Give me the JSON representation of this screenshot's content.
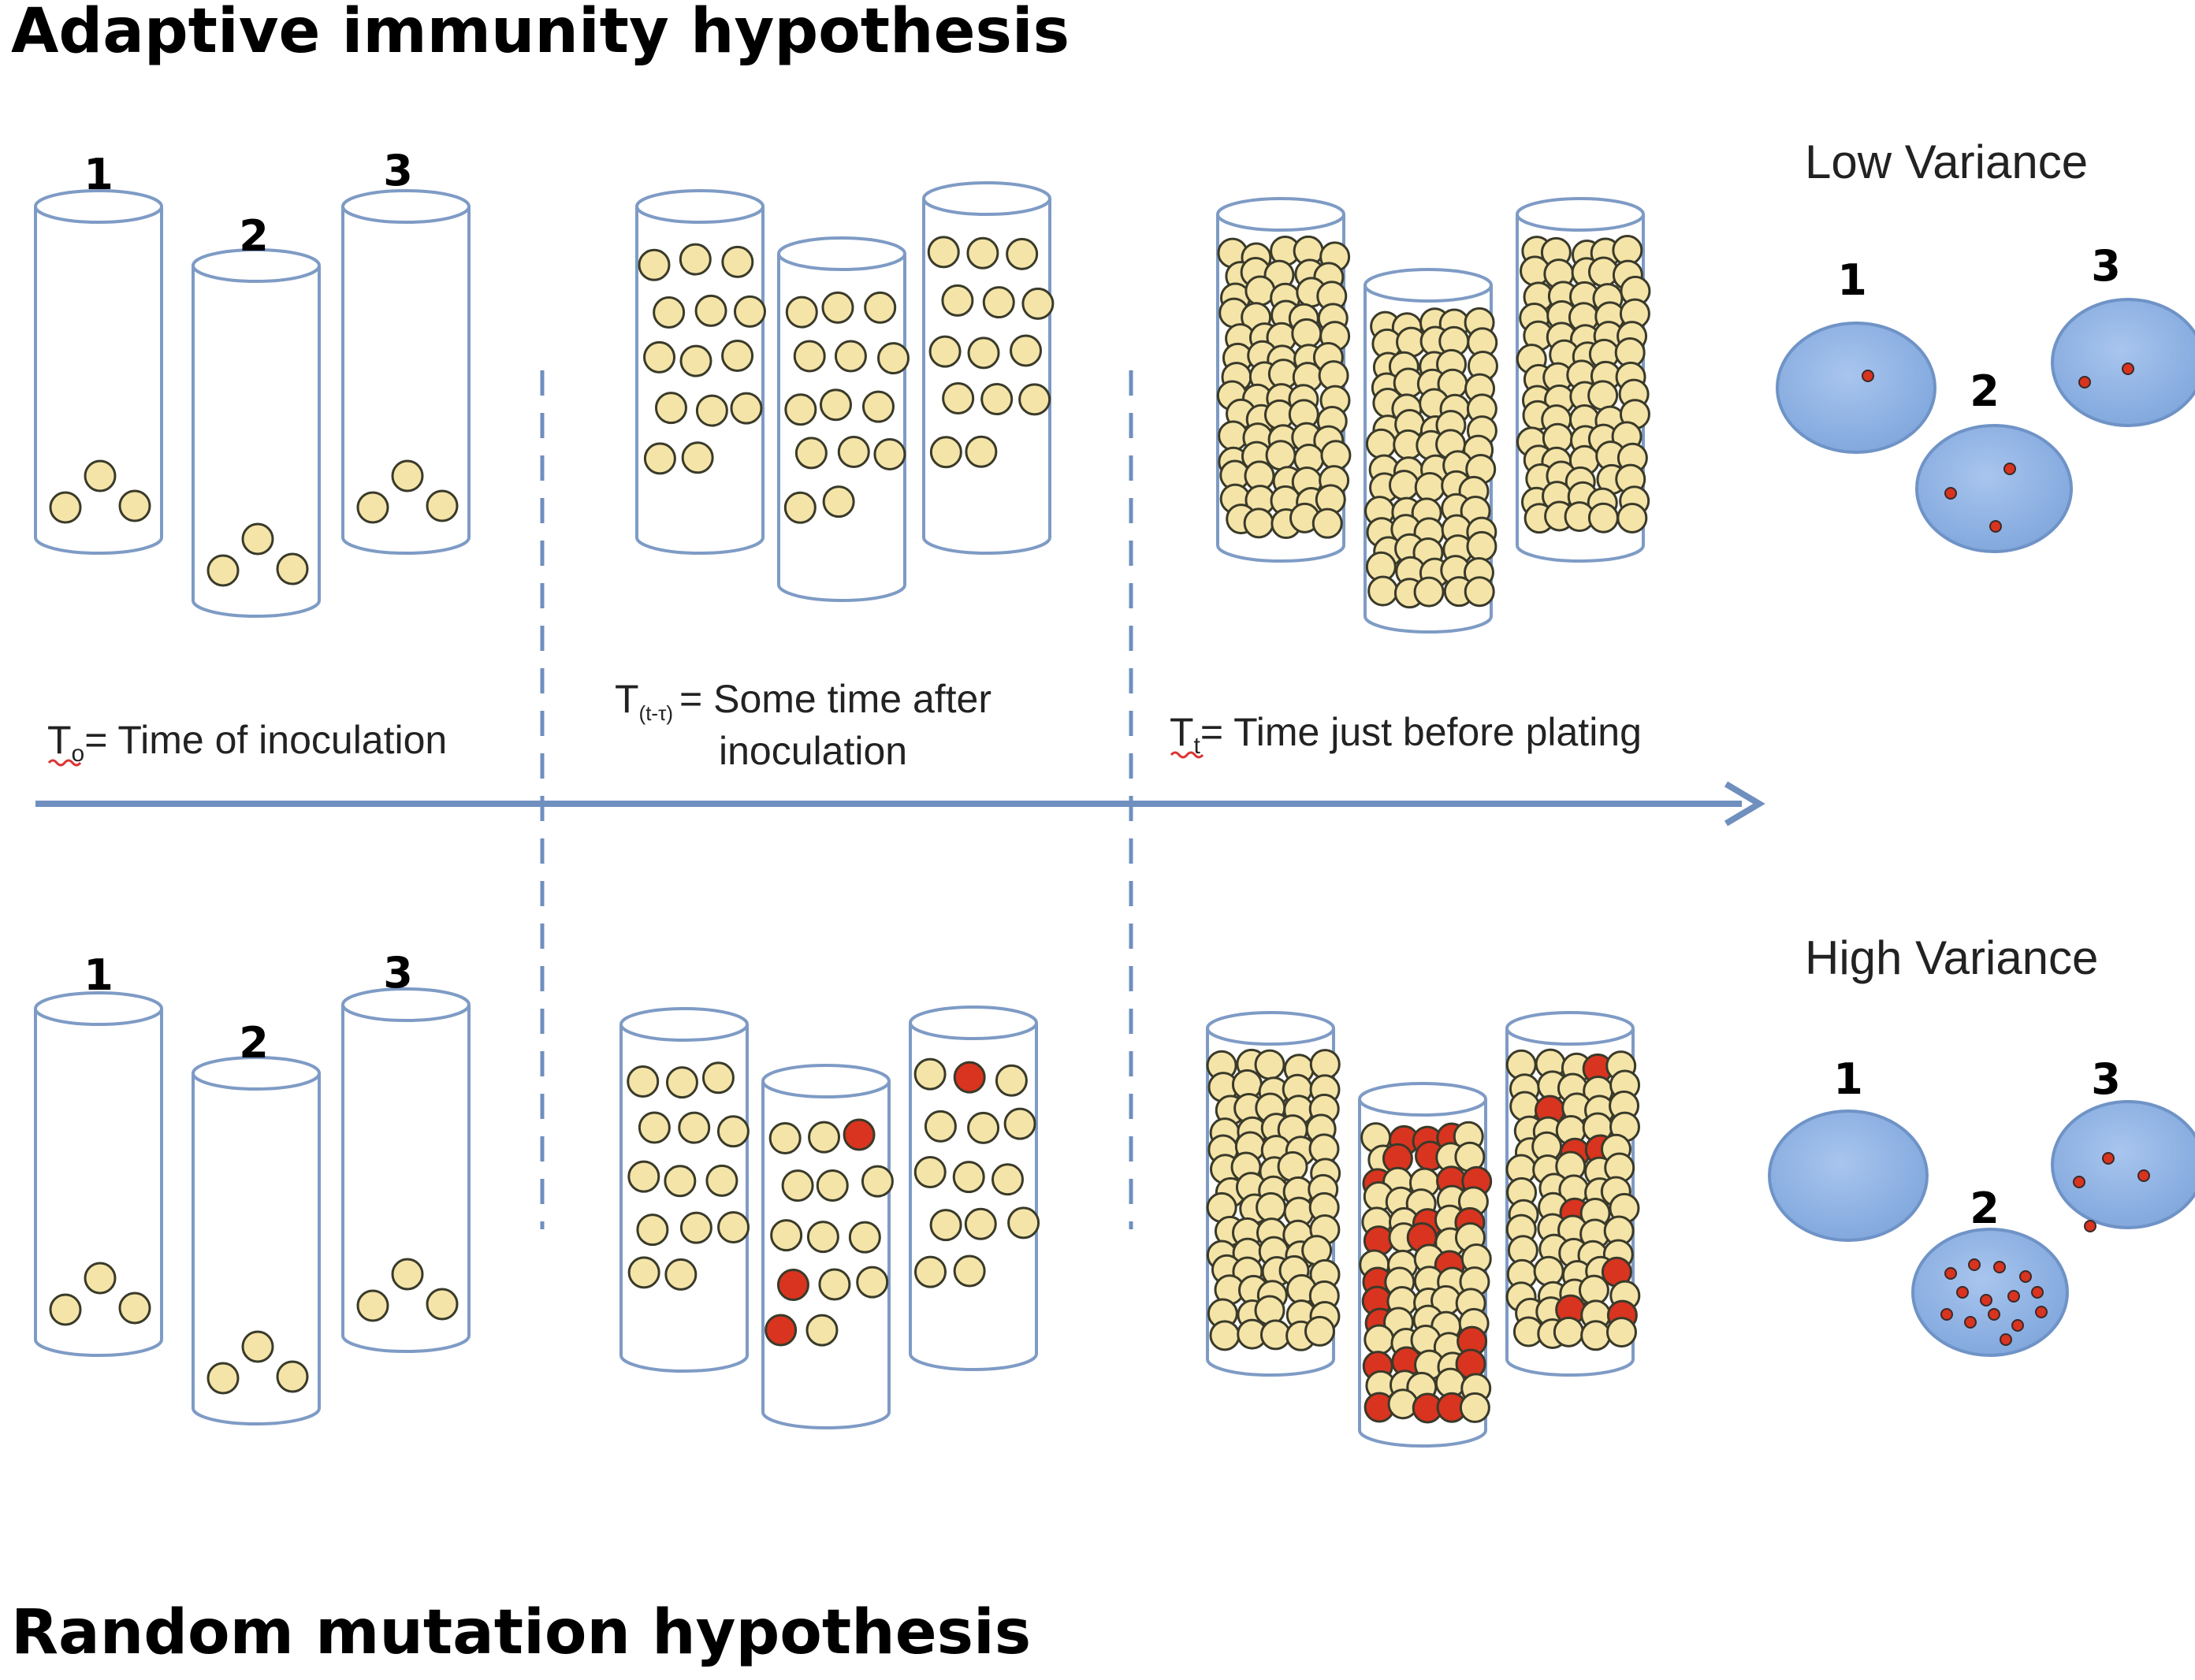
{
  "titles": {
    "top": "Adaptive immunity hypothesis",
    "bottom": "Random mutation hypothesis"
  },
  "timeline": {
    "t0_symbol": "T",
    "t0_sub": "o",
    "t0_text": "= Time of inoculation",
    "t1_symbol": "T",
    "t1_sub": "(t-τ)",
    "t1_text_line1": "= Some time after",
    "t1_text_line2": "inoculation",
    "t2_symbol": "T",
    "t2_sub": "t",
    "t2_text": "= Time just before plating"
  },
  "results": {
    "top_label": "Low Variance",
    "bottom_label": "High Variance",
    "top_plates": [
      {
        "label": "1",
        "colonies": 1
      },
      {
        "label": "2",
        "colonies": 3
      },
      {
        "label": "3",
        "colonies": 2
      }
    ],
    "bottom_plates": [
      {
        "label": "1",
        "colonies": 0
      },
      {
        "label": "2",
        "colonies": 14
      },
      {
        "label": "3",
        "colonies": 4
      }
    ]
  },
  "tube_labels": [
    "1",
    "2",
    "3"
  ],
  "colors": {
    "cell_fill": "#f4e4a8",
    "cell_stroke": "#3a3a2a",
    "mutant_fill": "#d9341f",
    "tube_stroke": "#7e9bc5",
    "plate_fill": "#8fb3e3",
    "plate_stroke": "#6f93c6",
    "arrow": "#6f8fbf"
  }
}
